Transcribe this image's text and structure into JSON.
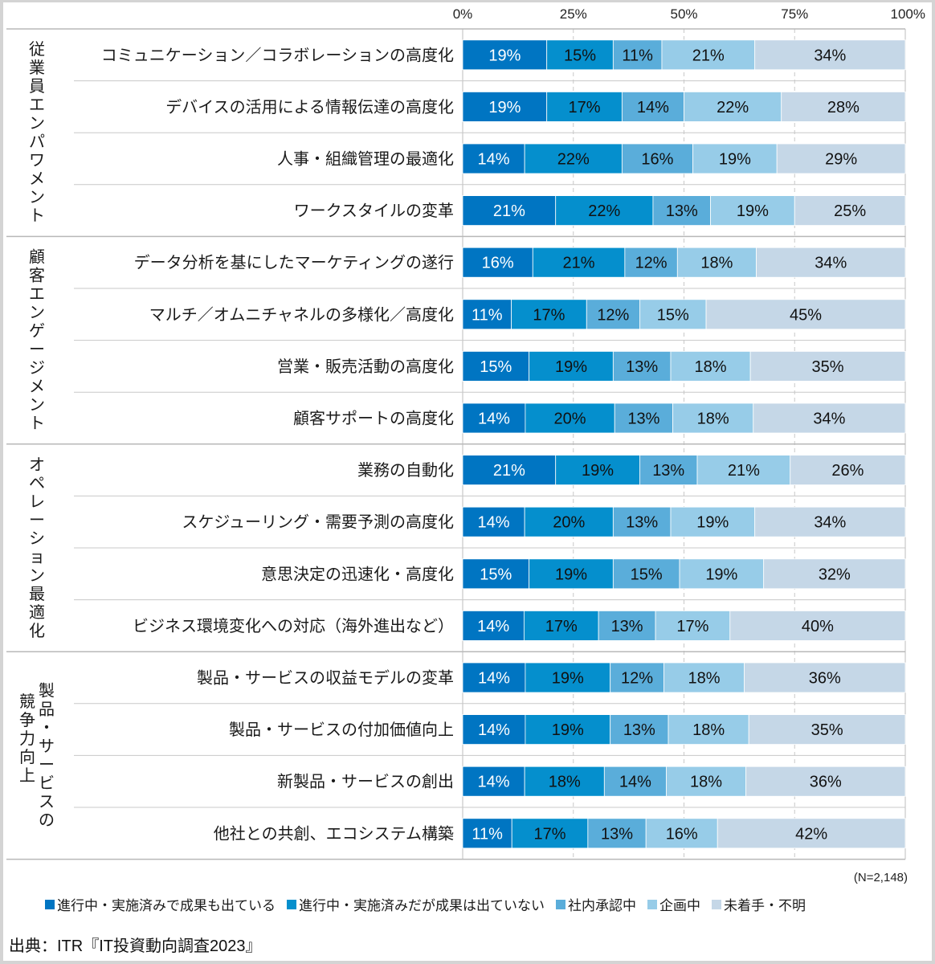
{
  "chart_data": {
    "type": "bar",
    "orientation": "horizontal",
    "stacked": true,
    "xlim": [
      0,
      100
    ],
    "x_ticks": [
      "0%",
      "25%",
      "50%",
      "75%",
      "100%"
    ],
    "grid": "dashed vertical at 25% intervals",
    "legend_position": "bottom",
    "sample_note": "(N=2,148)",
    "source": "出典：ITR『IT投資動向調査2023』",
    "series": [
      {
        "name": "進行中・実施済みで成果も出ている",
        "color": "#0075c2",
        "label_color": "#ffffff"
      },
      {
        "name": "進行中・実施済みだが成果は出ていない",
        "color": "#058fcd",
        "label_color": "#111111"
      },
      {
        "name": "社内承認中",
        "color": "#5aadda",
        "label_color": "#111111"
      },
      {
        "name": "企画中",
        "color": "#97cce8",
        "label_color": "#111111"
      },
      {
        "name": "未着手・不明",
        "color": "#c5d7e7",
        "label_color": "#111111"
      }
    ],
    "groups": [
      {
        "name": "従業員エンパワメント",
        "columns": [
          [
            "従",
            "業",
            "員",
            "エ",
            "ン",
            "パ",
            "ワ",
            "メ",
            "ン",
            "ト"
          ]
        ],
        "rows": [
          {
            "label": "コミュニケーション／コラボレーションの高度化",
            "values": [
              19,
              15,
              11,
              21,
              34
            ]
          },
          {
            "label": "デバイスの活用による情報伝達の高度化",
            "values": [
              19,
              17,
              14,
              22,
              28
            ]
          },
          {
            "label": "人事・組織管理の最適化",
            "values": [
              14,
              22,
              16,
              19,
              29
            ]
          },
          {
            "label": "ワークスタイルの変革",
            "values": [
              21,
              22,
              13,
              19,
              25
            ]
          }
        ]
      },
      {
        "name": "顧客エンゲージメント",
        "columns": [
          [
            "顧",
            "客",
            "エ",
            "ン",
            "ゲ",
            "ー",
            "ジ",
            "メ",
            "ン",
            "ト"
          ]
        ],
        "rows": [
          {
            "label": "データ分析を基にしたマーケティングの遂行",
            "values": [
              16,
              21,
              12,
              18,
              34
            ]
          },
          {
            "label": "マルチ／オムニチャネルの多様化／高度化",
            "values": [
              11,
              17,
              12,
              15,
              45
            ]
          },
          {
            "label": "営業・販売活動の高度化",
            "values": [
              15,
              19,
              13,
              18,
              35
            ]
          },
          {
            "label": "顧客サポートの高度化",
            "values": [
              14,
              20,
              13,
              18,
              34
            ]
          }
        ]
      },
      {
        "name": "オペレーション最適化",
        "columns": [
          [
            "オ",
            "ペ",
            "レ",
            "ー",
            "シ",
            "ョ",
            "ン",
            "最",
            "適",
            "化"
          ]
        ],
        "rows": [
          {
            "label": "業務の自動化",
            "values": [
              21,
              19,
              13,
              21,
              26
            ]
          },
          {
            "label": "スケジューリング・需要予測の高度化",
            "values": [
              14,
              20,
              13,
              19,
              34
            ]
          },
          {
            "label": "意思決定の迅速化・高度化",
            "values": [
              15,
              19,
              15,
              19,
              32
            ]
          },
          {
            "label": "ビジネス環境変化への対応（海外進出など）",
            "values": [
              14,
              17,
              13,
              17,
              40
            ]
          }
        ]
      },
      {
        "name": "製品・サービスの競争力向上",
        "columns": [
          [
            "製",
            "品",
            "・",
            "サ",
            "ー",
            "ビ",
            "ス",
            "の"
          ],
          [
            "競",
            "争",
            "力",
            "向",
            "上"
          ]
        ],
        "rows": [
          {
            "label": "製品・サービスの収益モデルの変革",
            "values": [
              14,
              19,
              12,
              18,
              36
            ]
          },
          {
            "label": "製品・サービスの付加価値向上",
            "values": [
              14,
              19,
              13,
              18,
              35
            ]
          },
          {
            "label": "新製品・サービスの創出",
            "values": [
              14,
              18,
              14,
              18,
              36
            ]
          },
          {
            "label": "他社との共創、エコシステム構築",
            "values": [
              11,
              17,
              13,
              16,
              42
            ]
          }
        ]
      }
    ]
  }
}
